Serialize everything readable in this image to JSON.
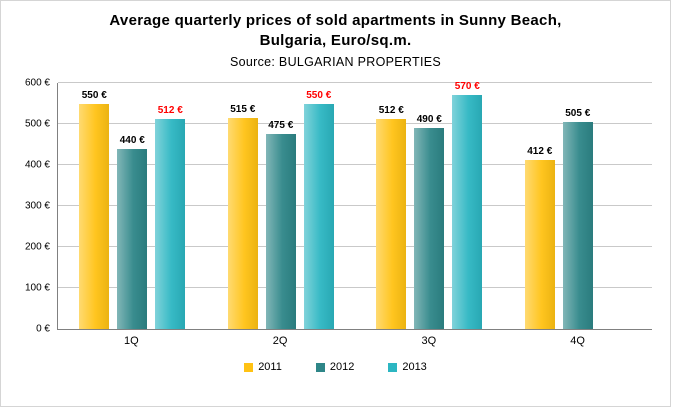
{
  "title": {
    "line1": "Average quarterly prices of sold apartments in Sunny Beach,",
    "line2": "Bulgaria, Euro/sq.m.",
    "source": "Source: BULGARIAN PROPERTIES"
  },
  "colors": {
    "grid": "#C9C9C9",
    "axis": "#808080",
    "value_label_default": "#000000",
    "value_label_2013": "#FF0000"
  },
  "chart_data": {
    "type": "bar",
    "title": "Average quarterly prices of sold apartments in Sunny Beach, Bulgaria, Euro/sq.m.",
    "subtitle": "Source: BULGARIAN PROPERTIES",
    "categories": [
      "1Q",
      "2Q",
      "3Q",
      "4Q"
    ],
    "series": [
      {
        "name": "2011",
        "color": "#FFC213",
        "label_color": "#000000",
        "values": [
          550,
          515,
          512,
          412
        ]
      },
      {
        "name": "2012",
        "color": "#2E8688",
        "label_color": "#000000",
        "values": [
          440,
          475,
          490,
          505
        ]
      },
      {
        "name": "2013",
        "color": "#2CB6C2",
        "label_color": "#FF0000",
        "values": [
          512,
          550,
          570,
          null
        ]
      }
    ],
    "value_label_format": "{v} €",
    "ytick_format": "{v} €",
    "xlabel": "",
    "ylabel": "",
    "ylim": [
      0,
      600
    ],
    "ytick_step": 100,
    "grid": true,
    "legend_position": "bottom"
  }
}
